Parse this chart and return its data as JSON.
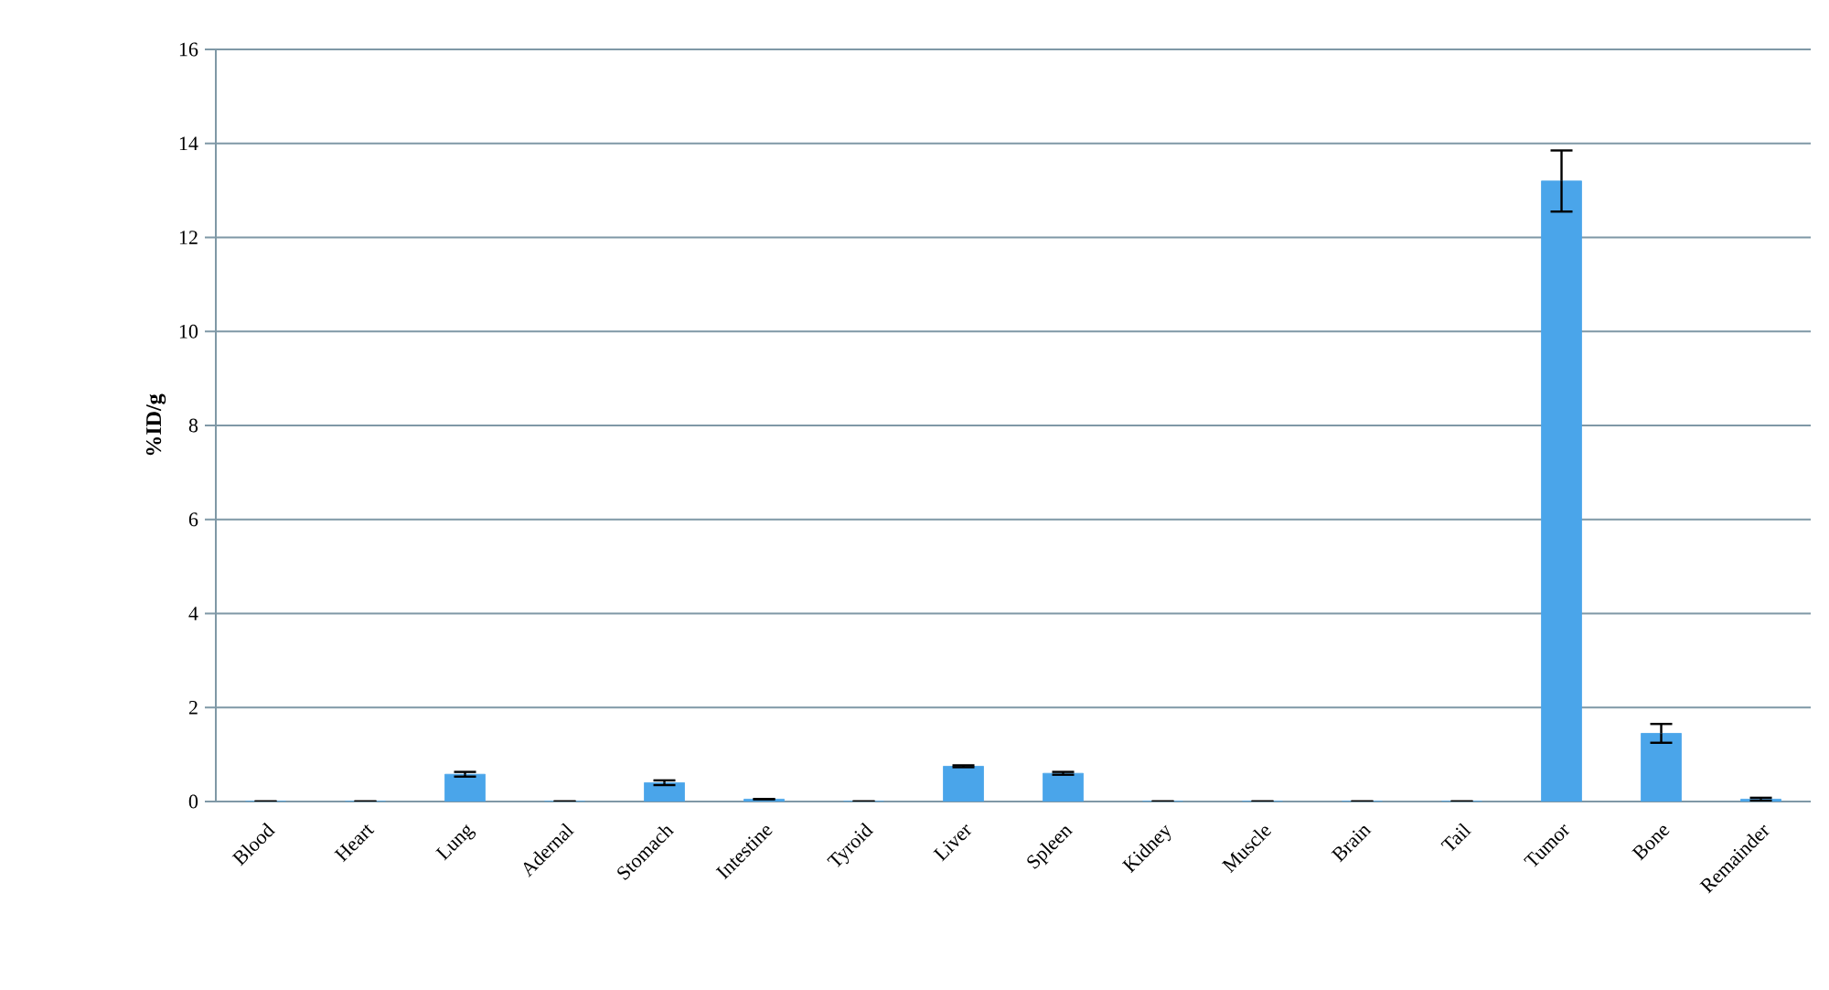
{
  "chart_data": {
    "type": "bar",
    "ylabel": "%ID/g",
    "categories": [
      "Blood",
      "Heart",
      "Lung",
      "Adernal",
      "Stomach",
      "Intestine",
      "Tyroid",
      "Liver",
      "Spleen",
      "Kidney",
      "Muscle",
      "Brain",
      "Tail",
      "Tumor",
      "Bone",
      "Remainder"
    ],
    "values": [
      0,
      0,
      0.58,
      0,
      0.4,
      0.05,
      0,
      0.75,
      0.6,
      0,
      0,
      0,
      0,
      13.2,
      1.45,
      0.05
    ],
    "errors": [
      null,
      null,
      0.05,
      null,
      0.05,
      null,
      null,
      0.02,
      0.03,
      null,
      null,
      null,
      null,
      0.65,
      0.2,
      0.03
    ],
    "color": "#4aa5ea",
    "ylim": [
      0,
      16
    ],
    "yticks": [
      0,
      2,
      4,
      6,
      8,
      10,
      12,
      14,
      16
    ],
    "grid": "y"
  }
}
